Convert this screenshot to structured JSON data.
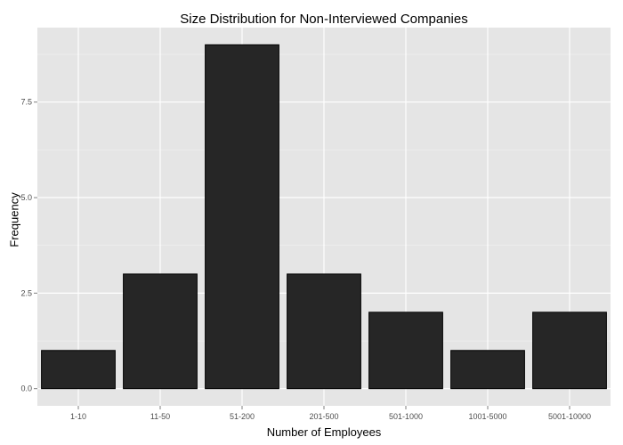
{
  "chart_data": {
    "type": "bar",
    "title": "Size Distribution for Non-Interviewed Companies",
    "xlabel": "Number of Employees",
    "ylabel": "Frequency",
    "categories": [
      "1-10",
      "11-50",
      "51-200",
      "201-500",
      "501-1000",
      "1001-5000",
      "5001-10000"
    ],
    "values": [
      1,
      3,
      9,
      3,
      2,
      1,
      2
    ],
    "ylim": [
      -0.45,
      9.45
    ],
    "yticks": [
      0,
      2.5,
      5,
      7.5
    ],
    "ytick_labels": [
      "0.0",
      "2.5",
      "5.0",
      "7.5"
    ],
    "grid": true,
    "colors": {
      "panel": "#e5e5e5",
      "bar_fill": "#262626",
      "bar_stroke": "#000000",
      "grid_major": "#ffffff",
      "grid_minor": "#f2f2f2"
    }
  }
}
